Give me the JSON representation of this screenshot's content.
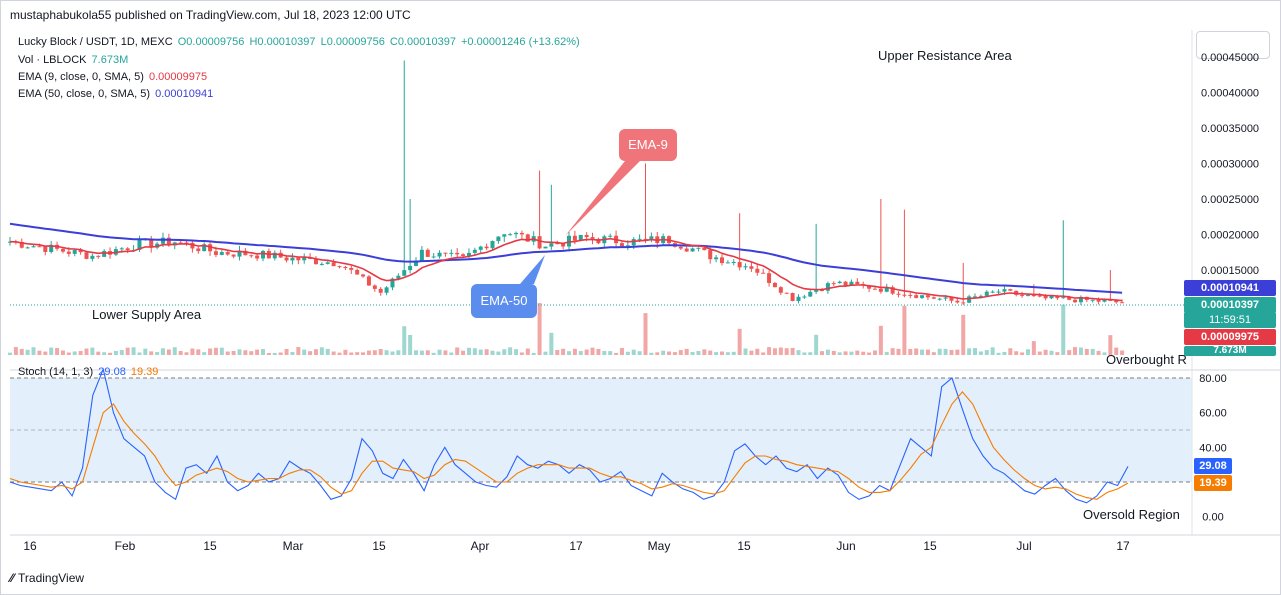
{
  "header": {
    "publisher": "mustaphabukola55 published on TradingView.com, Jul 18, 2023 12:00 UTC"
  },
  "legend": {
    "symbol": "Lucky Block / USDT, 1D, MEXC",
    "open": "O0.00009756",
    "high": "H0.00010397",
    "low": "L0.00009756",
    "close": "C0.00010397",
    "change": "+0.00001246 (+13.62%)",
    "vol_label": "Vol · LBLOCK",
    "vol_value": "7.673M",
    "ema9_label": "EMA (9, close, 0, SMA, 5)",
    "ema9_value": "0.00009975",
    "ema50_label": "EMA (50, close, 0, SMA, 5)",
    "ema50_value": "0.00010941",
    "stoch_label": "Stoch (14, 1, 3)",
    "stoch_k": "29.08",
    "stoch_d": "19.39"
  },
  "annotations": {
    "upper": "Upper Resistance Area",
    "lower": "Lower Supply Area",
    "overbought": "Overbought R",
    "oversold": "Oversold Region",
    "ema9_callout": "EMA-9",
    "ema50_callout": "EMA-50"
  },
  "price_labels": {
    "ema50": "0.00010941",
    "close": "0.00010397",
    "countdown": "11:59:51",
    "ema9": "0.00009975",
    "volume": "7.673M"
  },
  "colors": {
    "up": "#26a69a",
    "down": "#ef5350",
    "ema9": "#e53945",
    "ema50": "#3b3fd8",
    "stoch_k": "#2962ff",
    "stoch_d": "#f57c00",
    "callout_red": "#f0757b",
    "callout_blue": "#5b8def"
  },
  "footer": {
    "brand": "TradingView"
  },
  "chart_data": [
    {
      "type": "candlestick",
      "title": "Lucky Block / USDT, 1D, MEXC",
      "x_ticks": [
        "16",
        "Feb",
        "15",
        "Mar",
        "15",
        "Apr",
        "17",
        "May",
        "15",
        "Jun",
        "15",
        "Jul",
        "17"
      ],
      "y_ticks": [
        "0.00045000",
        "0.00040000",
        "0.00035000",
        "0.00030000",
        "0.00025000",
        "0.00020000",
        "0.00015000"
      ],
      "ylim": [
        0.0001,
        0.00045
      ],
      "price_series_approx": [
        {
          "x": "Jan 9",
          "close": 0.00019
        },
        {
          "x": "Jan 16",
          "close": 0.00018
        },
        {
          "x": "Jan 23",
          "close": 0.00017
        },
        {
          "x": "Feb 1",
          "close": 0.000185
        },
        {
          "x": "Feb 8",
          "close": 0.00019
        },
        {
          "x": "Feb 15",
          "close": 0.000175
        },
        {
          "x": "Feb 22",
          "close": 0.000172
        },
        {
          "x": "Mar 1",
          "close": 0.000165
        },
        {
          "x": "Mar 8",
          "close": 0.00016
        },
        {
          "x": "Mar 13",
          "close": 0.000118
        },
        {
          "x": "Mar 20",
          "close": 0.000175
        },
        {
          "x": "Mar 27",
          "close": 0.000165
        },
        {
          "x": "Apr 3",
          "close": 0.000205
        },
        {
          "x": "Apr 10",
          "close": 0.000185
        },
        {
          "x": "Apr 17",
          "close": 0.000195
        },
        {
          "x": "Apr 24",
          "close": 0.00019
        },
        {
          "x": "May 1",
          "close": 0.000193
        },
        {
          "x": "May 8",
          "close": 0.00017
        },
        {
          "x": "May 15",
          "close": 0.000155
        },
        {
          "x": "May 21",
          "close": 0.00011
        },
        {
          "x": "May 28",
          "close": 0.000132
        },
        {
          "x": "Jun 4",
          "close": 0.000125
        },
        {
          "x": "Jun 11",
          "close": 0.000115
        },
        {
          "x": "Jun 18",
          "close": 0.000105
        },
        {
          "x": "Jun 25",
          "close": 0.00012
        },
        {
          "x": "Jul 2",
          "close": 0.00011
        },
        {
          "x": "Jul 9",
          "close": 0.000108
        },
        {
          "x": "Jul 18",
          "close": 0.00010397
        }
      ],
      "ema9_last": 9.975e-05,
      "ema50_last": 0.00010941,
      "volume_last": "7.673M"
    },
    {
      "type": "line",
      "title": "Stoch (14, 1, 3)",
      "y_ticks": [
        "80.00",
        "60.00",
        "40.00",
        "20.00",
        "0.00"
      ],
      "ylim": [
        0,
        100
      ],
      "series": [
        {
          "name": "%K",
          "values": [
            20,
            18,
            17,
            16,
            15,
            20,
            12,
            28,
            70,
            85,
            60,
            45,
            40,
            35,
            20,
            14,
            10,
            28,
            30,
            25,
            35,
            20,
            15,
            18,
            25,
            20,
            22,
            32,
            28,
            25,
            18,
            10,
            12,
            22,
            45,
            38,
            25,
            22,
            33,
            25,
            15,
            30,
            40,
            30,
            25,
            20,
            18,
            17,
            23,
            35,
            30,
            28,
            32,
            30,
            25,
            30,
            27,
            20,
            22,
            26,
            18,
            15,
            12,
            25,
            20,
            16,
            14,
            10,
            12,
            20,
            38,
            42,
            35,
            30,
            35,
            28,
            26,
            30,
            22,
            28,
            24,
            14,
            10,
            12,
            18,
            15,
            30,
            45,
            40,
            35,
            75,
            80,
            62,
            45,
            35,
            28,
            25,
            20,
            15,
            13,
            18,
            22,
            15,
            10,
            8,
            12,
            20,
            18,
            29
          ]
        },
        {
          "name": "%D",
          "values": [
            22,
            20,
            19,
            18,
            17,
            18,
            16,
            20,
            40,
            60,
            65,
            55,
            48,
            42,
            35,
            25,
            18,
            20,
            24,
            26,
            28,
            26,
            22,
            20,
            21,
            22,
            22,
            25,
            27,
            27,
            23,
            17,
            13,
            15,
            25,
            32,
            32,
            28,
            27,
            26,
            22,
            24,
            30,
            33,
            32,
            28,
            24,
            20,
            20,
            25,
            28,
            30,
            30,
            30,
            28,
            28,
            28,
            25,
            23,
            23,
            21,
            19,
            16,
            17,
            19,
            18,
            16,
            14,
            13,
            15,
            23,
            31,
            35,
            35,
            33,
            32,
            30,
            29,
            28,
            27,
            26,
            22,
            17,
            14,
            14,
            15,
            21,
            28,
            36,
            40,
            53,
            65,
            72,
            65,
            52,
            40,
            33,
            27,
            22,
            18,
            16,
            17,
            16,
            13,
            11,
            10,
            14,
            16,
            19.39
          ]
        }
      ]
    }
  ]
}
